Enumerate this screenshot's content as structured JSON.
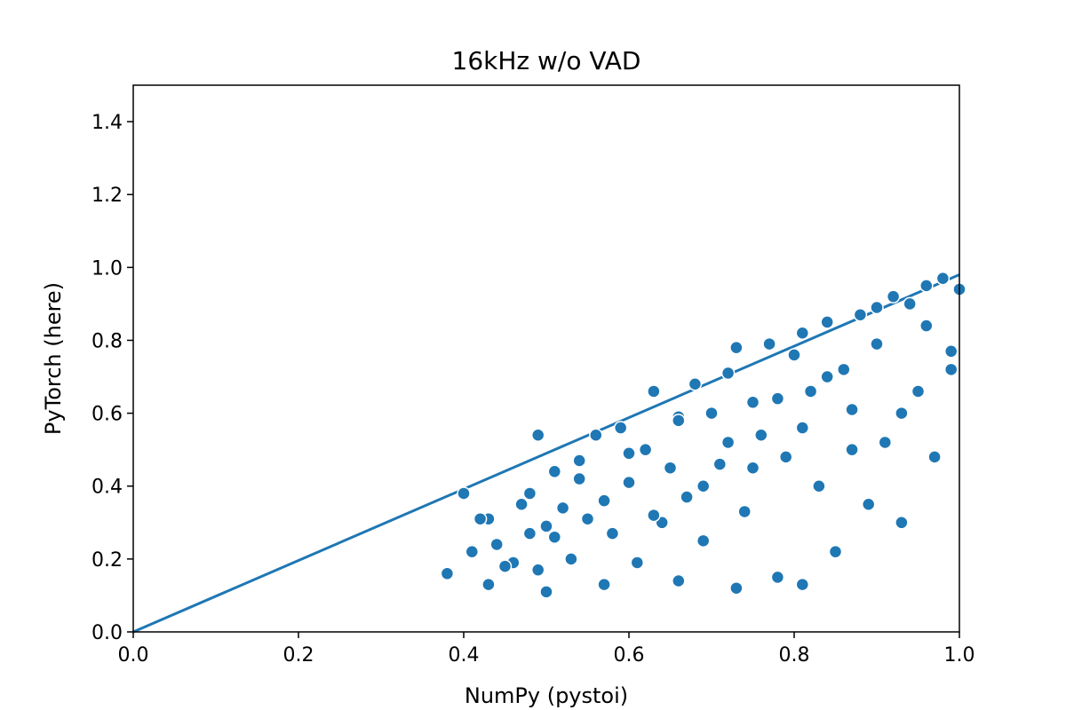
{
  "chart_data": {
    "type": "scatter",
    "title": "16kHz w/o VAD",
    "xlabel": "NumPy (pystoi)",
    "ylabel": "PyTorch (here)",
    "xlim": [
      0.0,
      1.0
    ],
    "ylim": [
      0.0,
      1.5
    ],
    "xticks": [
      "0.0",
      "0.2",
      "0.4",
      "0.6",
      "0.8",
      "1.0"
    ],
    "yticks": [
      "0.0",
      "0.2",
      "0.4",
      "0.6",
      "0.8",
      "1.0",
      "1.2",
      "1.4"
    ],
    "grid": false,
    "legend": "none",
    "color": "#1f77b4",
    "series": [
      {
        "type": "line",
        "x": [
          0.0,
          1.0
        ],
        "y": [
          0.0,
          0.98
        ]
      },
      {
        "type": "scatter",
        "x": [
          0.38,
          0.4,
          0.41,
          0.43,
          0.43,
          0.44,
          0.46,
          0.47,
          0.48,
          0.49,
          0.49,
          0.5,
          0.5,
          0.51,
          0.52,
          0.53,
          0.54,
          0.55,
          0.56,
          0.57,
          0.58,
          0.59,
          0.6,
          0.61,
          0.62,
          0.63,
          0.64,
          0.65,
          0.66,
          0.66,
          0.67,
          0.68,
          0.69,
          0.7,
          0.71,
          0.72,
          0.73,
          0.73,
          0.74,
          0.75,
          0.76,
          0.77,
          0.78,
          0.79,
          0.8,
          0.81,
          0.81,
          0.82,
          0.83,
          0.84,
          0.85,
          0.86,
          0.87,
          0.88,
          0.89,
          0.9,
          0.91,
          0.92,
          0.93,
          0.94,
          0.95,
          0.96,
          0.97,
          0.98,
          0.99,
          1.0,
          0.42,
          0.45,
          0.48,
          0.51,
          0.54,
          0.57,
          0.6,
          0.63,
          0.66,
          0.69,
          0.72,
          0.75,
          0.78,
          0.81,
          0.84,
          0.87,
          0.9,
          0.93,
          0.96,
          0.99
        ],
        "y": [
          0.16,
          0.38,
          0.22,
          0.13,
          0.31,
          0.24,
          0.19,
          0.35,
          0.27,
          0.54,
          0.17,
          0.29,
          0.11,
          0.44,
          0.34,
          0.2,
          0.47,
          0.31,
          0.54,
          0.13,
          0.27,
          0.56,
          0.41,
          0.19,
          0.5,
          0.66,
          0.3,
          0.45,
          0.14,
          0.59,
          0.37,
          0.68,
          0.25,
          0.6,
          0.46,
          0.71,
          0.12,
          0.78,
          0.33,
          0.63,
          0.54,
          0.79,
          0.15,
          0.48,
          0.76,
          0.13,
          0.82,
          0.66,
          0.4,
          0.85,
          0.22,
          0.72,
          0.61,
          0.87,
          0.35,
          0.89,
          0.52,
          0.92,
          0.3,
          0.9,
          0.66,
          0.95,
          0.48,
          0.97,
          0.77,
          0.94,
          0.31,
          0.18,
          0.38,
          0.26,
          0.42,
          0.36,
          0.49,
          0.32,
          0.58,
          0.4,
          0.52,
          0.45,
          0.64,
          0.56,
          0.7,
          0.5,
          0.79,
          0.6,
          0.84,
          0.72
        ]
      }
    ]
  }
}
